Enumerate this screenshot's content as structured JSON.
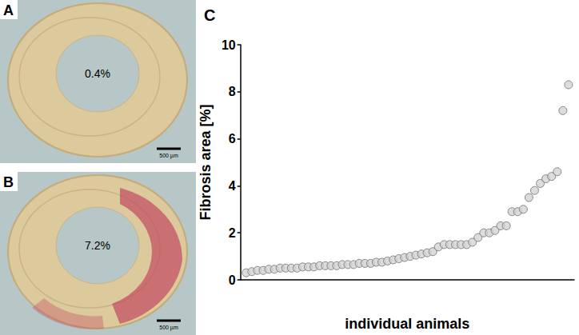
{
  "panels": [
    {
      "label": "A",
      "annotation": "0.4%",
      "scale_bar": "500 µm"
    },
    {
      "label": "B",
      "annotation": "7.2%",
      "scale_bar": "500 µm"
    }
  ],
  "chart_data": {
    "label": "C",
    "type": "scatter",
    "x_label": "individual animals",
    "y_label": "Fibrosis area [%]",
    "x": [
      1,
      2,
      3,
      4,
      5,
      6,
      7,
      8,
      9,
      10,
      11,
      12,
      13,
      14,
      15,
      16,
      17,
      18,
      19,
      20,
      21,
      22,
      23,
      24,
      25,
      26,
      27,
      28,
      29,
      30,
      31,
      32,
      33,
      34,
      35,
      36,
      37,
      38,
      39,
      40,
      41,
      42,
      43,
      44,
      45,
      46,
      47,
      48,
      49,
      50,
      51,
      52,
      53,
      54,
      55,
      56,
      57,
      58
    ],
    "values": [
      0.3,
      0.35,
      0.4,
      0.4,
      0.45,
      0.45,
      0.5,
      0.5,
      0.5,
      0.5,
      0.55,
      0.55,
      0.55,
      0.6,
      0.6,
      0.6,
      0.6,
      0.65,
      0.65,
      0.65,
      0.7,
      0.7,
      0.7,
      0.75,
      0.75,
      0.8,
      0.85,
      0.9,
      0.95,
      1.0,
      1.05,
      1.1,
      1.15,
      1.2,
      1.4,
      1.5,
      1.5,
      1.5,
      1.5,
      1.5,
      1.6,
      1.8,
      2.0,
      2.0,
      2.1,
      2.3,
      2.3,
      2.9,
      2.9,
      3.0,
      3.5,
      3.8,
      4.1,
      4.3,
      4.4,
      4.6,
      7.2,
      8.3
    ],
    "color": "#d3d3d3",
    "marker": "circle",
    "xlim": [
      0,
      59
    ],
    "ylim": [
      0,
      10
    ],
    "yticks": [
      0,
      2,
      4,
      6,
      8,
      10
    ],
    "tick_labels": "y",
    "grid": false
  }
}
